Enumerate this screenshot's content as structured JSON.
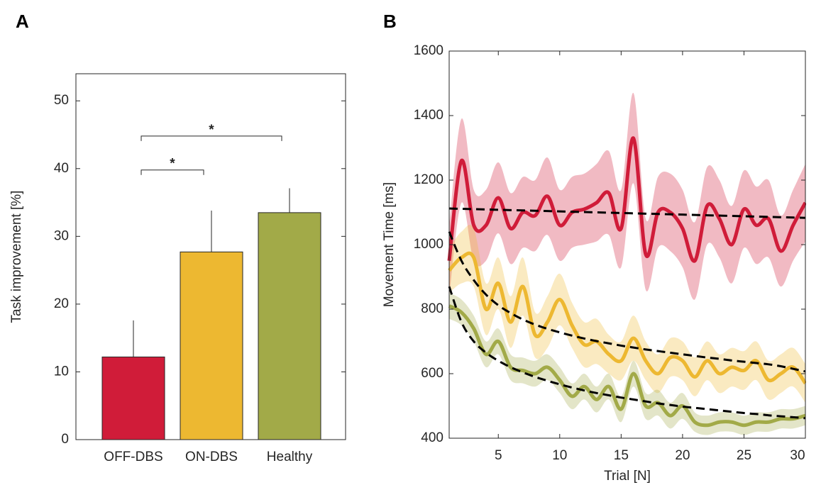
{
  "chart_data": [
    {
      "type": "bar",
      "panel": "A",
      "ylabel": "Task improvement [%]",
      "categories": [
        "OFF-DBS",
        "ON-DBS",
        "Healthy"
      ],
      "values": [
        12.2,
        27.7,
        33.5
      ],
      "errors": [
        5.4,
        6.1,
        3.6
      ],
      "colors": [
        "#d01c39",
        "#edb831",
        "#a2aa48"
      ],
      "ylim": [
        0,
        54
      ],
      "yticks": [
        0,
        10,
        20,
        30,
        40,
        50
      ],
      "significance": [
        {
          "label": "*",
          "between": [
            0,
            1
          ]
        },
        {
          "label": "*",
          "between": [
            0,
            2
          ]
        }
      ]
    },
    {
      "type": "line",
      "panel": "B",
      "xlabel": "Trial [N]",
      "ylabel": "Movement Time [ms]",
      "x": [
        1,
        2,
        3,
        4,
        5,
        6,
        7,
        8,
        9,
        10,
        11,
        12,
        13,
        14,
        15,
        16,
        17,
        18,
        19,
        20,
        21,
        22,
        23,
        24,
        25,
        26,
        27,
        28,
        29,
        30
      ],
      "xlim": [
        1,
        30
      ],
      "xticks": [
        5,
        10,
        15,
        20,
        25,
        30
      ],
      "ylim": [
        400,
        1600
      ],
      "yticks": [
        400,
        600,
        800,
        1000,
        1200,
        1400,
        1600
      ],
      "series": [
        {
          "color": "#d01c39",
          "values": [
            950,
            1260,
            1060,
            1060,
            1145,
            1050,
            1100,
            1090,
            1150,
            1060,
            1100,
            1110,
            1130,
            1160,
            1050,
            1330,
            970,
            1100,
            1100,
            1050,
            950,
            1120,
            1080,
            1000,
            1110,
            1060,
            1080,
            980,
            1060,
            1130
          ],
          "error": [
            110,
            130,
            110,
            110,
            110,
            110,
            110,
            110,
            120,
            110,
            110,
            110,
            120,
            130,
            120,
            140,
            110,
            110,
            120,
            120,
            120,
            120,
            120,
            120,
            120,
            120,
            120,
            110,
            110,
            120
          ]
        },
        {
          "color": "#edb831",
          "values": [
            920,
            960,
            960,
            800,
            880,
            760,
            870,
            720,
            760,
            830,
            750,
            690,
            700,
            660,
            640,
            710,
            640,
            600,
            650,
            640,
            590,
            640,
            600,
            620,
            610,
            640,
            580,
            600,
            620,
            570
          ],
          "error": [
            70,
            80,
            90,
            80,
            80,
            80,
            90,
            70,
            80,
            80,
            70,
            70,
            70,
            60,
            60,
            70,
            60,
            60,
            60,
            60,
            60,
            60,
            60,
            60,
            60,
            60,
            60,
            60,
            60,
            60
          ]
        },
        {
          "color": "#a2aa48",
          "values": [
            810,
            790,
            740,
            660,
            700,
            620,
            610,
            600,
            620,
            580,
            530,
            560,
            520,
            560,
            490,
            600,
            500,
            510,
            470,
            500,
            450,
            440,
            450,
            450,
            440,
            450,
            450,
            460,
            460,
            470
          ],
          "error": [
            40,
            40,
            40,
            40,
            40,
            40,
            40,
            40,
            40,
            40,
            40,
            40,
            40,
            40,
            40,
            40,
            40,
            40,
            40,
            40,
            30,
            30,
            30,
            30,
            30,
            30,
            30,
            30,
            30,
            30
          ]
        }
      ],
      "fits": [
        {
          "color": "#000000",
          "values": [
            1112,
            1111,
            1110,
            1109,
            1108,
            1107,
            1106,
            1105,
            1104,
            1103,
            1102,
            1101,
            1100,
            1099,
            1098,
            1097,
            1096,
            1095,
            1094,
            1093,
            1092,
            1091,
            1090,
            1089,
            1088,
            1087,
            1086,
            1085,
            1084,
            1083
          ]
        },
        {
          "color": "#000000",
          "values": [
            1040,
            950,
            890,
            845,
            812,
            788,
            768,
            752,
            739,
            728,
            718,
            709,
            701,
            694,
            687,
            681,
            675,
            670,
            665,
            660,
            655,
            650,
            646,
            641,
            637,
            633,
            629,
            623,
            615,
            607
          ]
        },
        {
          "color": "#000000",
          "values": [
            870,
            760,
            700,
            665,
            640,
            620,
            604,
            590,
            578,
            567,
            557,
            548,
            540,
            533,
            526,
            520,
            514,
            508,
            503,
            498,
            494,
            490,
            486,
            482,
            478,
            475,
            471,
            468,
            465,
            462
          ]
        }
      ]
    }
  ]
}
